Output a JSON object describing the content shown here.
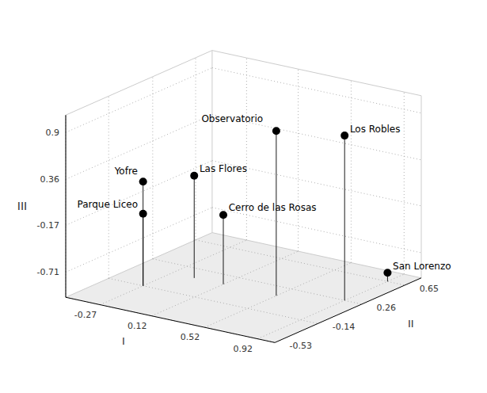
{
  "chart_data": {
    "type": "scatter3d",
    "annotations": [
      "Observatorio",
      "Los Robles",
      "Yofre",
      "Las Flores",
      "Parque Liceo",
      "Cerro de las Rosas",
      "San Lorenzo"
    ],
    "x": [
      0.52,
      0.92,
      -0.27,
      -0.1,
      -0.27,
      0.12,
      0.92
    ],
    "y": [
      0.12,
      0.26,
      -0.14,
      0.12,
      -0.14,
      0.12,
      0.65
    ],
    "z": [
      0.9,
      0.9,
      0.2,
      0.18,
      -0.17,
      -0.2,
      -0.9
    ],
    "xlabel": "I",
    "ylabel": "II",
    "zlabel": "III",
    "xlim": [
      -0.53,
      1.05
    ],
    "ylim": [
      -0.53,
      0.8
    ],
    "zlim": [
      -1.0,
      1.1
    ],
    "xticks": [
      -0.27,
      0.12,
      0.52,
      0.92
    ],
    "yticks": [
      -0.53,
      -0.14,
      0.26,
      0.65
    ],
    "zticks": [
      -0.71,
      -0.17,
      0.36,
      0.9
    ],
    "color": "black",
    "marker": "o",
    "grid": true
  }
}
